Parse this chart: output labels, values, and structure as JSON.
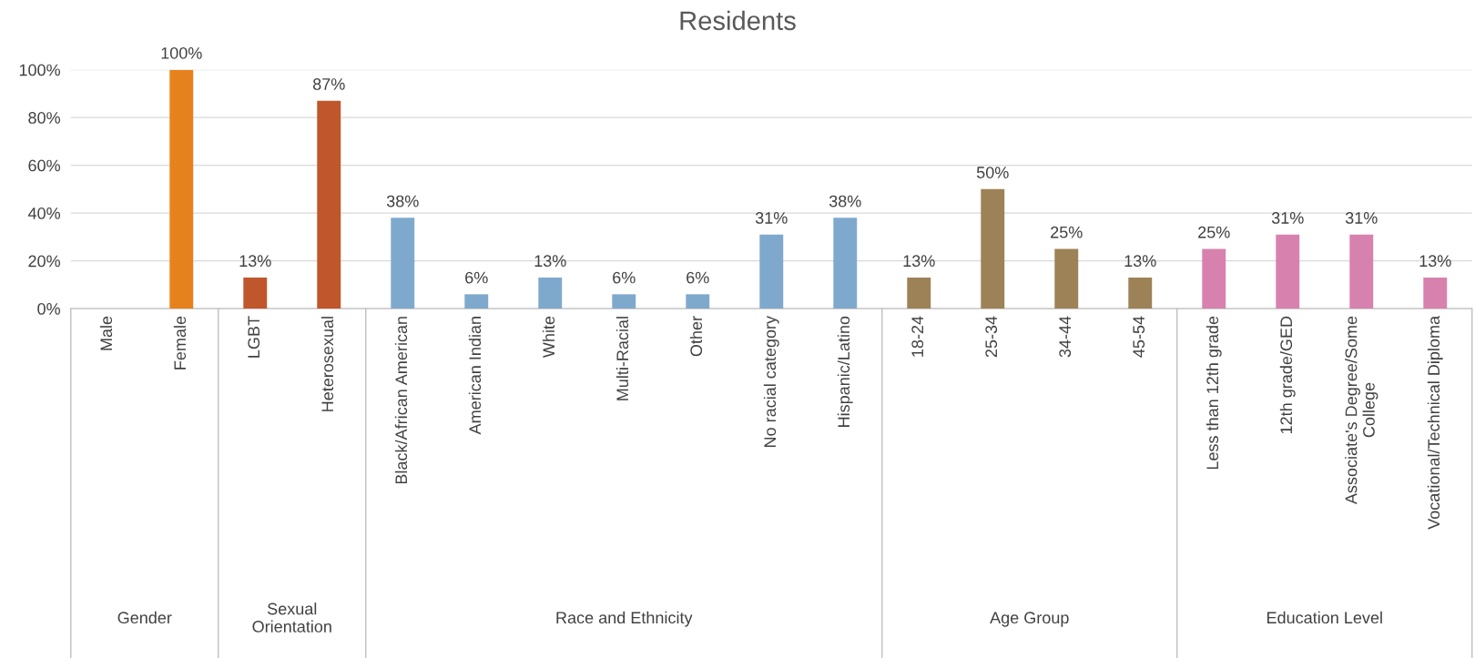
{
  "chart_data": {
    "type": "bar",
    "title": "Residents",
    "categories": [
      "Male",
      "Female",
      "LGBT",
      "Heterosexual",
      "Black/African American",
      "American Indian",
      "White",
      "Multi-Racial",
      "Other",
      "No racial category",
      "Hispanic/Latino",
      "18-24",
      "25-34",
      "34-44",
      "45-54",
      "Less than 12th grade",
      "12th grade/GED",
      "Associate's Degree/Some\nCollege",
      "Vocational/Technical Diploma"
    ],
    "values": [
      0,
      100,
      13,
      87,
      38,
      6,
      13,
      6,
      6,
      31,
      38,
      13,
      50,
      25,
      13,
      25,
      31,
      31,
      13
    ],
    "colors": [
      "#e6821e",
      "#e6821e",
      "#c0562b",
      "#c0562b",
      "#7fa9cc",
      "#7fa9cc",
      "#7fa9cc",
      "#7fa9cc",
      "#7fa9cc",
      "#7fa9cc",
      "#7fa9cc",
      "#9c8256",
      "#9c8256",
      "#9c8256",
      "#9c8256",
      "#d782ae",
      "#d782ae",
      "#d782ae",
      "#d782ae"
    ],
    "value_labels": [
      null,
      "100%",
      "13%",
      "87%",
      "38%",
      "6%",
      "13%",
      "6%",
      "6%",
      "31%",
      "38%",
      "13%",
      "50%",
      "25%",
      "13%",
      "25%",
      "31%",
      "31%",
      "13%"
    ],
    "annotations": [
      "Gender",
      "Sexual\nOrientation",
      "Race and Ethnicity",
      "Age Group",
      "Education Level"
    ],
    "ylim": [
      0,
      100
    ],
    "yticks": [
      {
        "value": 0,
        "label": "0%"
      },
      {
        "value": 20,
        "label": "20%"
      },
      {
        "value": 40,
        "label": "40%"
      },
      {
        "value": 60,
        "label": "60%"
      },
      {
        "value": 80,
        "label": "80%"
      },
      {
        "value": 100,
        "label": "100%"
      }
    ],
    "grid": "y"
  }
}
